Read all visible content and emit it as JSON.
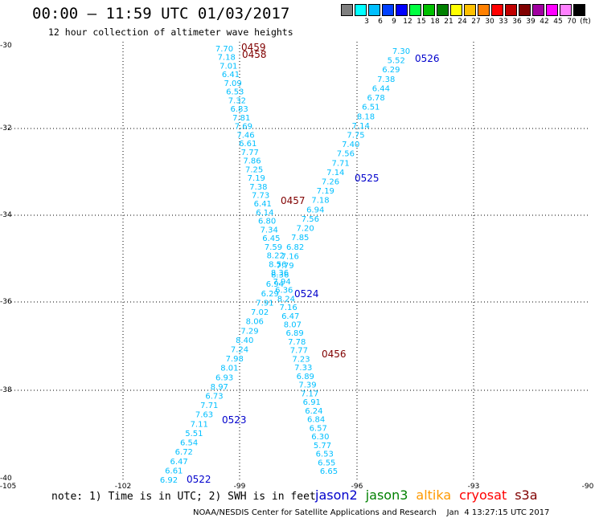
{
  "title": "00:00 – 11:59 UTC 01/03/2017",
  "subtitle": "12 hour collection of altimeter wave heights",
  "legend": {
    "swatches": [
      {
        "label": "",
        "color": "#7f7f7f"
      },
      {
        "label": "3",
        "color": "#00ffff"
      },
      {
        "label": "6",
        "color": "#00bfff"
      },
      {
        "label": "9",
        "color": "#0040ff"
      },
      {
        "label": "12",
        "color": "#0000ff"
      },
      {
        "label": "15",
        "color": "#00ff40"
      },
      {
        "label": "18",
        "color": "#00c000"
      },
      {
        "label": "21",
        "color": "#008000"
      },
      {
        "label": "24",
        "color": "#ffff00"
      },
      {
        "label": "27",
        "color": "#ffc000"
      },
      {
        "label": "30",
        "color": "#ff8000"
      },
      {
        "label": "33",
        "color": "#ff0000"
      },
      {
        "label": "36",
        "color": "#c00000"
      },
      {
        "label": "39",
        "color": "#800000"
      },
      {
        "label": "42",
        "color": "#a000a0"
      },
      {
        "label": "45",
        "color": "#ff00ff"
      },
      {
        "label": "70",
        "color": "#ff80ff"
      },
      {
        "label": "(ft)",
        "color": "#000000"
      }
    ]
  },
  "axes": {
    "lat_labels": [
      "-30",
      "-32",
      "-34",
      "-36",
      "-38",
      "-40"
    ],
    "lon_labels": [
      "-105",
      "-102",
      "-99",
      "-96",
      "-93",
      "-90"
    ]
  },
  "colors": {
    "value": "#00bfff",
    "jason2": "#0000cc",
    "s3a": "#800000",
    "grid": "#000000"
  },
  "tracks": {
    "track_a": {
      "values": [
        "7.70",
        "7.18",
        "7.01",
        "6.41",
        "7.09",
        "6.53",
        "7.32",
        "6.83",
        "7.81",
        "7.69",
        "7.46",
        "6.61",
        "7.77",
        "7.86",
        "7.25",
        "7.19",
        "7.38",
        "7.73",
        "6.41",
        "6.14",
        "6.80",
        "7.34",
        "6.45",
        "7.59",
        "8.22",
        "8.56",
        "8.36",
        "7.94",
        "6.36",
        "8.24",
        "7.16",
        "6.47",
        "8.07",
        "6.89",
        "7.78",
        "7.77",
        "7.23",
        "7.33",
        "6.89",
        "7.39",
        "7.17",
        "6.91",
        "6.24",
        "6.84",
        "6.57",
        "6.30",
        "5.77",
        "6.53",
        "6.55",
        "6.65"
      ]
    },
    "track_b": {
      "values": [
        "7.30",
        "5.52",
        "6.29",
        "7.38",
        "6.44",
        "6.78",
        "6.51",
        "8.18",
        "7.14",
        "7.75",
        "7.40",
        "7.56",
        "7.71",
        "7.14",
        "7.26",
        "7.19",
        "7.18",
        "6.94",
        "7.56",
        "7.20",
        "7.85",
        "6.82",
        "7.16",
        "7.79",
        "8.36",
        "6.94",
        "6.29",
        "7.91",
        "7.02",
        "8.06",
        "7.29",
        "8.40",
        "7.24",
        "7.98",
        "8.01",
        "6.93",
        "8.97",
        "6.73",
        "7.71",
        "7.63",
        "7.11",
        "5.51",
        "6.54",
        "6.72",
        "6.47",
        "6.61",
        "6.92"
      ]
    }
  },
  "time_labels": {
    "t0459": "0459",
    "t0458": "0458",
    "t0457": "0457",
    "t0456": "0456",
    "t0526": "0526",
    "t0525": "0525",
    "t0524": "0524",
    "t0523": "0523",
    "t0522": "0522"
  },
  "note": "note: 1) Time is in UTC; 2) SWH is in feet",
  "satellites": [
    {
      "name": "jason2",
      "color": "#0000cc"
    },
    {
      "name": "jason3",
      "color": "#008000"
    },
    {
      "name": "altika",
      "color": "#ff9900"
    },
    {
      "name": "cryosat",
      "color": "#ff0000"
    },
    {
      "name": "s3a",
      "color": "#800000"
    }
  ],
  "credit": "NOAA/NESDIS Center for Satellite Applications and Research    Jan  4 13:27:15 UTC 2017"
}
